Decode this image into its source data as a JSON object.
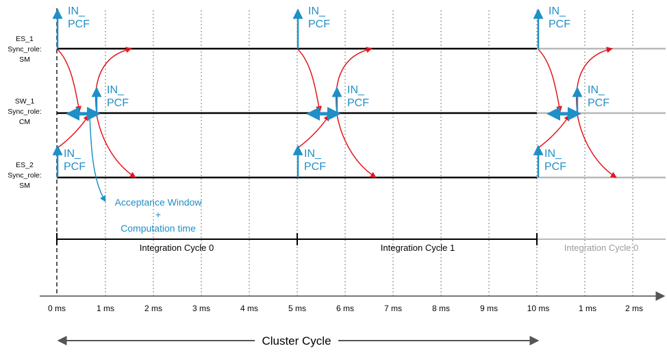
{
  "colors": {
    "timeline": "#000000",
    "faded": "#b8b8b8",
    "faded_text": "#9a9a9a",
    "pcf_blue": "#1f8fc7",
    "arrow_red": "#e3141b",
    "grid": "#777777",
    "axis": "#777777"
  },
  "lanes": [
    {
      "line1": "ES_1",
      "line2": "Sync_role:",
      "line3": "SM"
    },
    {
      "line1": "SW_1",
      "line2": "Sync_role:",
      "line3": "CM"
    },
    {
      "line1": "ES_2",
      "line2": "Sync_role:",
      "line3": "SM"
    }
  ],
  "pcf_labels": [
    {
      "line1": "IN_",
      "line2": "PCF"
    },
    {
      "line1": "IN_",
      "line2": "PCF"
    },
    {
      "line1": "IN_",
      "line2": "PCF"
    },
    {
      "line1": "IN_",
      "line2": "PCF"
    },
    {
      "line1": "IN_",
      "line2": "PCF"
    },
    {
      "line1": "IN_",
      "line2": "PCF"
    },
    {
      "line1": "IN_",
      "line2": "PCF"
    },
    {
      "line1": "IN_",
      "line2": "PCF"
    },
    {
      "line1": "IN_",
      "line2": "PCF"
    }
  ],
  "annotation": {
    "line1": "Acceptance Window",
    "line2": "+",
    "line3": "Computation time"
  },
  "integration_cycles": [
    "Integration Cycle 0",
    "Integration Cycle 1",
    "Integration Cycle 0"
  ],
  "time_ticks": [
    "0 ms",
    "1 ms",
    "2 ms",
    "3 ms",
    "4 ms",
    "5 ms",
    "6 ms",
    "7 ms",
    "8 ms",
    "9 ms",
    "10 ms",
    "1 ms",
    "2 ms"
  ],
  "cluster_label": "Cluster Cycle"
}
